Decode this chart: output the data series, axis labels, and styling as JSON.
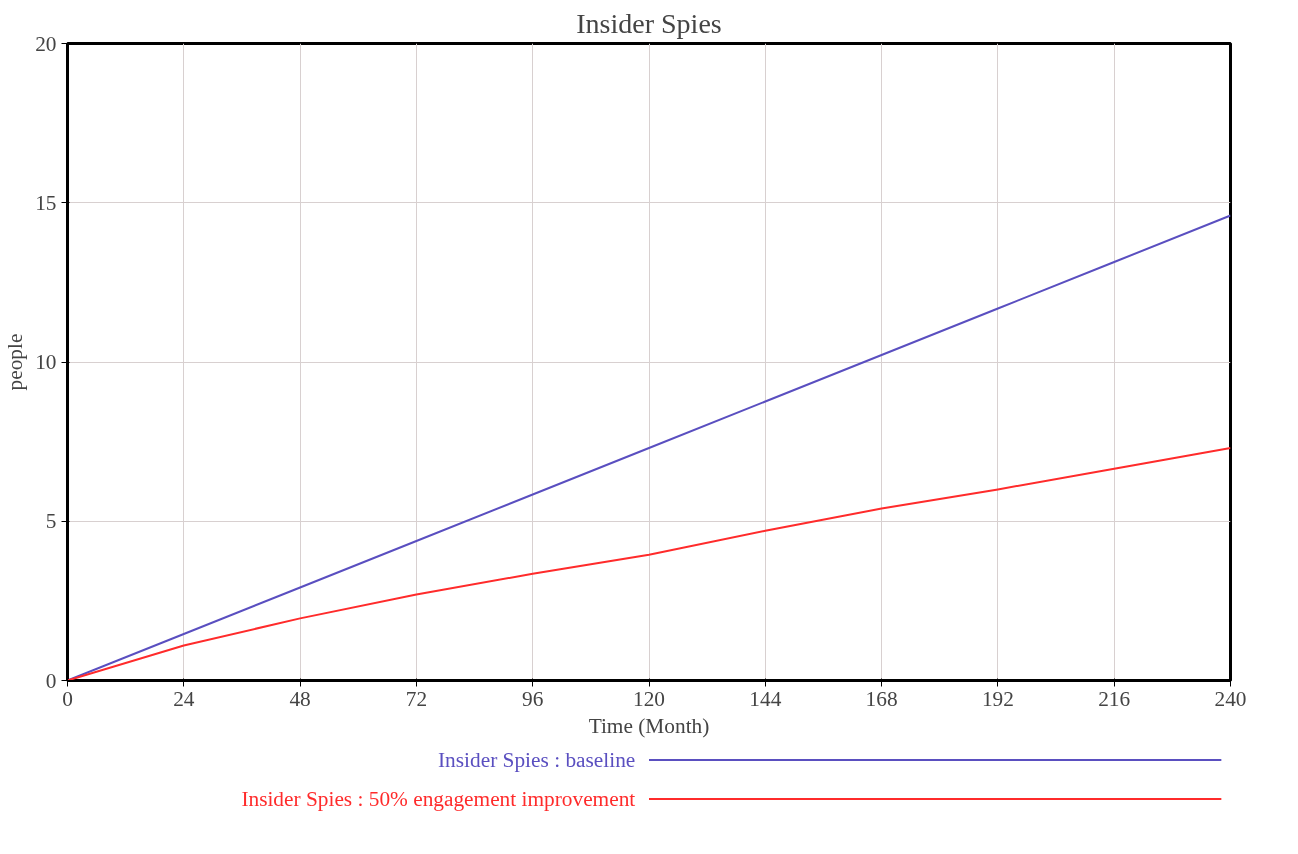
{
  "chart_data": {
    "type": "line",
    "title": "Insider Spies",
    "xlabel": "Time (Month)",
    "ylabel": "people",
    "x": [
      0,
      24,
      48,
      72,
      96,
      120,
      144,
      168,
      192,
      216,
      240
    ],
    "series": [
      {
        "name": "Insider Spies : baseline",
        "color": "#5a4fc0",
        "values": [
          0,
          1.46,
          2.92,
          4.38,
          5.84,
          7.3,
          8.76,
          10.22,
          11.68,
          13.14,
          14.6
        ]
      },
      {
        "name": "Insider Spies : 50% engagement improvement",
        "color": "#ff2b2b",
        "values": [
          0,
          1.1,
          1.95,
          2.7,
          3.35,
          3.95,
          4.7,
          5.4,
          6.0,
          6.65,
          7.3
        ]
      }
    ],
    "xlim": [
      0,
      240
    ],
    "xticks": [
      0,
      24,
      48,
      72,
      96,
      120,
      144,
      168,
      192,
      216,
      240
    ],
    "ylim": [
      0,
      20
    ],
    "yticks": [
      0,
      5,
      10,
      15,
      20
    ],
    "grid": true,
    "legend": "bottom",
    "line_style": "solid"
  }
}
